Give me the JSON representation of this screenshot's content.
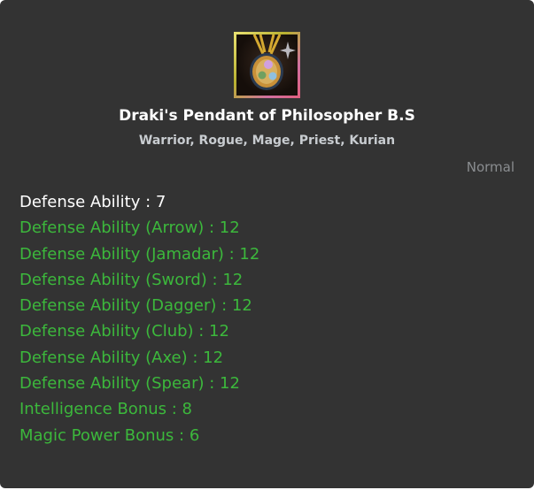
{
  "item": {
    "icon": "pendant-icon",
    "name": "Draki's Pendant of Philosopher B.S",
    "classes": "Warrior, Rogue, Mage, Priest, Kurian",
    "grade": "Normal"
  },
  "stats": [
    {
      "text": "Defense Ability : 7",
      "kind": "base"
    },
    {
      "text": "Defense Ability (Arrow) : 12",
      "kind": "bonus"
    },
    {
      "text": "Defense Ability (Jamadar) : 12",
      "kind": "bonus"
    },
    {
      "text": "Defense Ability (Sword) : 12",
      "kind": "bonus"
    },
    {
      "text": "Defense Ability (Dagger) : 12",
      "kind": "bonus"
    },
    {
      "text": "Defense Ability (Club) : 12",
      "kind": "bonus"
    },
    {
      "text": "Defense Ability (Axe) : 12",
      "kind": "bonus"
    },
    {
      "text": "Defense Ability (Spear) : 12",
      "kind": "bonus"
    },
    {
      "text": "Intelligence Bonus : 8",
      "kind": "bonus"
    },
    {
      "text": "Magic Power Bonus : 6",
      "kind": "bonus"
    }
  ],
  "colors": {
    "background": "#333333",
    "base_stat": "#ffffff",
    "bonus_stat": "#3cb83c",
    "grade": "#8a8d90"
  }
}
